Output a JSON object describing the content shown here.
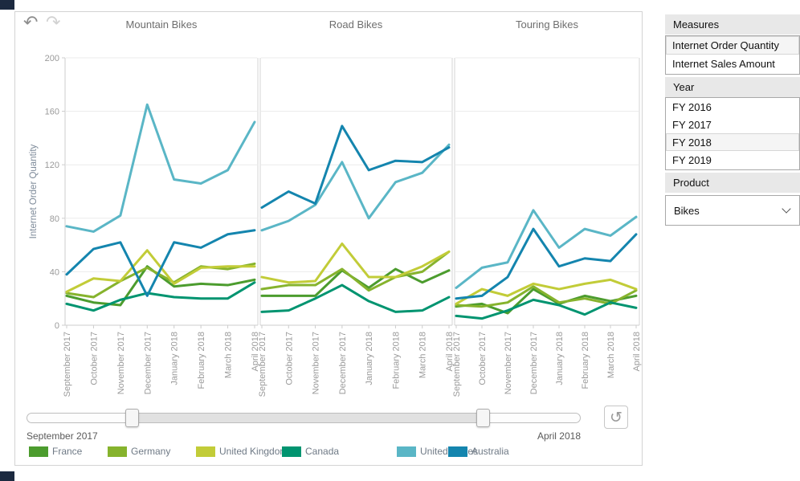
{
  "icons": {
    "undo": "↶",
    "redo": "↷",
    "reset": "↺"
  },
  "chart_data": {
    "type": "line",
    "ylabel": "Internet Order Quantity",
    "ylim": [
      0,
      200
    ],
    "yticks": [
      0,
      40,
      80,
      120,
      160,
      200
    ],
    "grid": true,
    "legend_position": "bottom",
    "x": [
      "September 2017",
      "October 2017",
      "November 2017",
      "December 2017",
      "January 2018",
      "February 2018",
      "March 2018",
      "April 2018"
    ],
    "facets": [
      {
        "title": "Mountain Bikes",
        "series": [
          {
            "name": "France",
            "color": "#4C9C2E",
            "values": [
              22,
              17,
              15,
              44,
              29,
              31,
              30,
              34
            ]
          },
          {
            "name": "Germany",
            "color": "#86B32D",
            "values": [
              24,
              21,
              33,
              43,
              32,
              44,
              42,
              46
            ]
          },
          {
            "name": "United Kingdom",
            "color": "#C2CC38",
            "values": [
              25,
              35,
              33,
              56,
              31,
              43,
              44,
              44
            ]
          },
          {
            "name": "Canada",
            "color": "#009470",
            "values": [
              16,
              11,
              19,
              24,
              21,
              20,
              20,
              32
            ]
          },
          {
            "name": "United States",
            "color": "#5AB6C6",
            "values": [
              74,
              70,
              82,
              165,
              109,
              106,
              116,
              152
            ]
          },
          {
            "name": "Australia",
            "color": "#1485AE",
            "values": [
              38,
              57,
              62,
              22,
              62,
              58,
              68,
              71
            ]
          }
        ]
      },
      {
        "title": "Road Bikes",
        "series": [
          {
            "name": "France",
            "color": "#4C9C2E",
            "values": [
              22,
              22,
              22,
              41,
              28,
              42,
              32,
              41
            ]
          },
          {
            "name": "Germany",
            "color": "#86B32D",
            "values": [
              27,
              30,
              30,
              42,
              26,
              36,
              40,
              55
            ]
          },
          {
            "name": "United Kingdom",
            "color": "#C2CC38",
            "values": [
              36,
              32,
              33,
              61,
              36,
              36,
              44,
              55
            ]
          },
          {
            "name": "Canada",
            "color": "#009470",
            "values": [
              10,
              11,
              20,
              30,
              18,
              10,
              11,
              21
            ]
          },
          {
            "name": "United States",
            "color": "#5AB6C6",
            "values": [
              71,
              78,
              90,
              122,
              80,
              107,
              114,
              135
            ]
          },
          {
            "name": "Australia",
            "color": "#1485AE",
            "values": [
              88,
              100,
              91,
              149,
              116,
              123,
              122,
              133
            ]
          }
        ]
      },
      {
        "title": "Touring Bikes",
        "series": [
          {
            "name": "France",
            "color": "#4C9C2E",
            "values": [
              14,
              16,
              9,
              27,
              16,
              22,
              18,
              22
            ]
          },
          {
            "name": "Germany",
            "color": "#86B32D",
            "values": [
              15,
              14,
              17,
              29,
              17,
              20,
              16,
              26
            ]
          },
          {
            "name": "United Kingdom",
            "color": "#C2CC38",
            "values": [
              16,
              27,
              22,
              31,
              27,
              31,
              34,
              27
            ]
          },
          {
            "name": "Canada",
            "color": "#009470",
            "values": [
              7,
              5,
              11,
              19,
              15,
              8,
              17,
              13
            ]
          },
          {
            "name": "United States",
            "color": "#5AB6C6",
            "values": [
              28,
              43,
              47,
              86,
              58,
              72,
              67,
              81
            ]
          },
          {
            "name": "Australia",
            "color": "#1485AE",
            "values": [
              20,
              22,
              36,
              72,
              44,
              50,
              48,
              68
            ]
          }
        ]
      }
    ],
    "legend": [
      {
        "label": "France",
        "color": "#4C9C2E"
      },
      {
        "label": "Germany",
        "color": "#86B32D"
      },
      {
        "label": "United Kingdom",
        "color": "#C2CC38"
      },
      {
        "label": "Canada",
        "color": "#009470"
      },
      {
        "label": "United States",
        "color": "#5AB6C6"
      },
      {
        "label": "Australia",
        "color": "#1485AE"
      }
    ]
  },
  "slider": {
    "start_label": "September 2017",
    "end_label": "April 2018"
  },
  "sidebar": {
    "measures": {
      "title": "Measures",
      "options": [
        "Internet Order Quantity",
        "Internet Sales Amount"
      ],
      "selected": "Internet Order Quantity"
    },
    "year": {
      "title": "Year",
      "options": [
        "FY 2016",
        "FY 2017",
        "FY 2018",
        "FY 2019"
      ],
      "selected": "FY 2018"
    },
    "product": {
      "title": "Product",
      "value": "Bikes"
    }
  }
}
